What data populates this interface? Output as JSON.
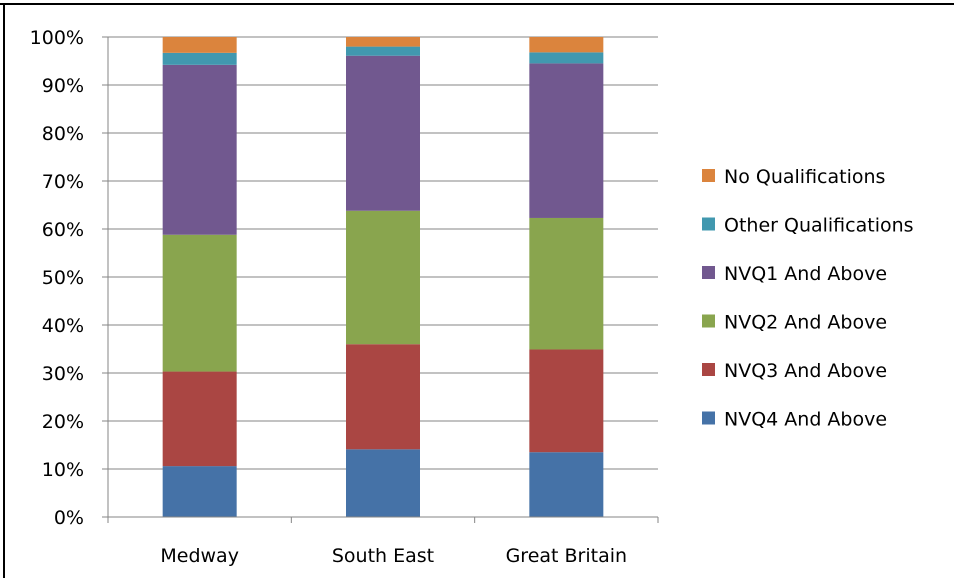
{
  "chart_data": {
    "type": "bar",
    "stacked": true,
    "normalized": true,
    "categories": [
      "Medway",
      "South East",
      "Great Britain"
    ],
    "series": [
      {
        "name": "NVQ4 And Above",
        "color": "#4572A7",
        "values": [
          10.6,
          14.1,
          13.5
        ]
      },
      {
        "name": "NVQ3 And Above",
        "color": "#AA4643",
        "values": [
          19.7,
          21.9,
          21.4
        ]
      },
      {
        "name": "NVQ2 And Above",
        "color": "#89A54E",
        "values": [
          28.5,
          27.8,
          27.4
        ]
      },
      {
        "name": "NVQ1 And Above",
        "color": "#71588F",
        "values": [
          35.4,
          32.3,
          32.2
        ]
      },
      {
        "name": "Other Qualifications",
        "color": "#4198AF",
        "values": [
          2.5,
          1.9,
          2.3
        ]
      },
      {
        "name": "No Qualifications",
        "color": "#DB843D",
        "values": [
          3.3,
          2.0,
          3.2
        ]
      }
    ],
    "yticks": [
      "0%",
      "10%",
      "20%",
      "30%",
      "40%",
      "50%",
      "60%",
      "70%",
      "80%",
      "90%",
      "100%"
    ],
    "ylim": [
      0,
      100
    ],
    "grid": true,
    "legend_position": "right",
    "title": "",
    "xlabel": "",
    "ylabel": ""
  }
}
